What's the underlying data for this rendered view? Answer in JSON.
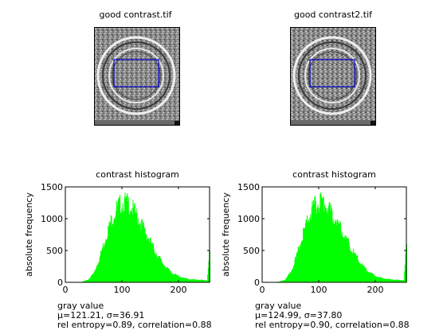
{
  "panels": [
    {
      "image_title": "good contrast.tif",
      "stats": {
        "line1": "μ=121.21, σ=36.91",
        "line2": "rel entropy=0.89, correlation=0.88"
      }
    },
    {
      "image_title": "good contrast2.tif",
      "stats": {
        "line1": "μ=124.99, σ=37.80",
        "line2": "rel entropy=0.90, correlation=0.88"
      }
    }
  ],
  "colors": {
    "bars": "#00ff00",
    "roi": "#0000cc",
    "axis": "#000000"
  },
  "chart_data": [
    {
      "type": "bar",
      "title": "contrast histogram",
      "xlabel": "gray value",
      "ylabel": "absolute frequency",
      "xlim": [
        0,
        255
      ],
      "ylim": [
        0,
        1500
      ],
      "xticks": [
        0,
        100,
        200
      ],
      "yticks": [
        0,
        500,
        1000,
        1500
      ],
      "grid": false,
      "x": [
        20,
        30,
        40,
        50,
        60,
        70,
        80,
        90,
        95,
        100,
        105,
        110,
        115,
        120,
        130,
        140,
        150,
        160,
        170,
        180,
        190,
        200,
        210,
        220,
        230,
        240,
        250,
        255
      ],
      "values": [
        0,
        10,
        40,
        140,
        360,
        650,
        900,
        1080,
        1140,
        1170,
        1180,
        1160,
        1120,
        1060,
        920,
        760,
        590,
        430,
        300,
        200,
        130,
        90,
        60,
        45,
        40,
        35,
        30,
        500
      ]
    },
    {
      "type": "bar",
      "title": "contrast histogram",
      "xlabel": "gray value",
      "ylabel": "absolute frequency",
      "xlim": [
        0,
        255
      ],
      "ylim": [
        0,
        1500
      ],
      "xticks": [
        0,
        100,
        200
      ],
      "yticks": [
        0,
        500,
        1000,
        1500
      ],
      "grid": false,
      "x": [
        20,
        30,
        40,
        50,
        60,
        70,
        80,
        90,
        95,
        100,
        105,
        110,
        115,
        120,
        130,
        140,
        150,
        160,
        170,
        180,
        190,
        200,
        210,
        220,
        230,
        240,
        250,
        255
      ],
      "values": [
        0,
        10,
        40,
        150,
        380,
        680,
        920,
        1090,
        1150,
        1170,
        1170,
        1150,
        1110,
        1050,
        920,
        770,
        600,
        450,
        320,
        210,
        140,
        95,
        65,
        50,
        40,
        35,
        30,
        600
      ]
    }
  ]
}
